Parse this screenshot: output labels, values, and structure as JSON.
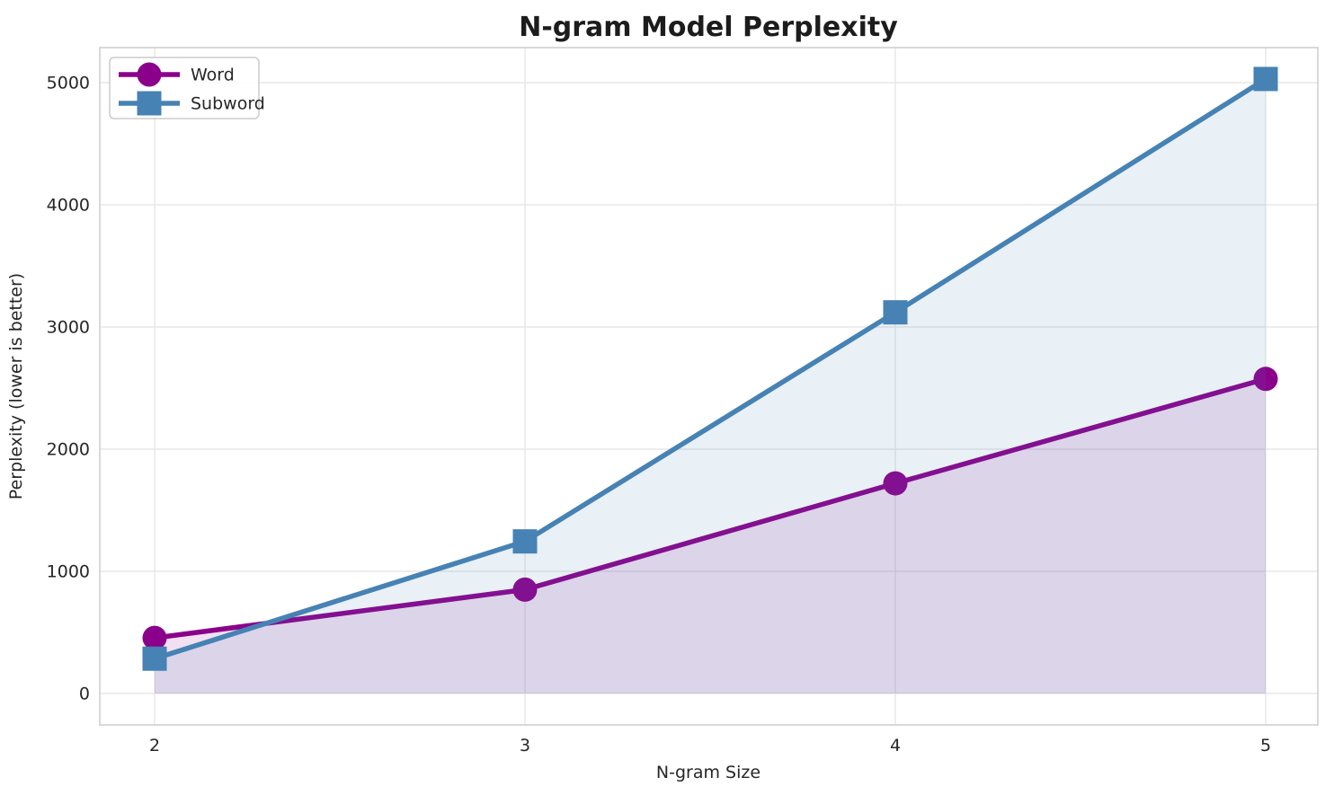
{
  "chart_data": {
    "type": "line",
    "title": "N-gram Model Perplexity",
    "xlabel": "N-gram Size",
    "ylabel": "Perplexity (lower is better)",
    "x": [
      2,
      3,
      4,
      5
    ],
    "x_tick_labels": [
      "2",
      "3",
      "4",
      "5"
    ],
    "y_ticks": [
      0,
      1000,
      2000,
      3000,
      4000,
      5000
    ],
    "y_tick_labels": [
      "0",
      "1000",
      "2000",
      "3000",
      "4000",
      "5000"
    ],
    "xlim": [
      1.85,
      5.14
    ],
    "ylim": [
      -260,
      5290
    ],
    "grid": true,
    "legend_position": "upper-left",
    "baseline_fill": 0,
    "series": [
      {
        "name": "Word",
        "marker": "circle",
        "color": "#8B008B",
        "fill_opacity": 0.12,
        "values": [
          455,
          850,
          1720,
          2575
        ]
      },
      {
        "name": "Subword",
        "marker": "square",
        "color": "#4682B4",
        "fill_opacity": 0.12,
        "values": [
          285,
          1245,
          3120,
          5030
        ]
      }
    ]
  },
  "colors": {
    "grid": "#e7e7e7",
    "spine": "#c9c9c9",
    "plot_background": "#ffffff",
    "legend_border": "#cccccc",
    "legend_background": "#ffffff"
  }
}
